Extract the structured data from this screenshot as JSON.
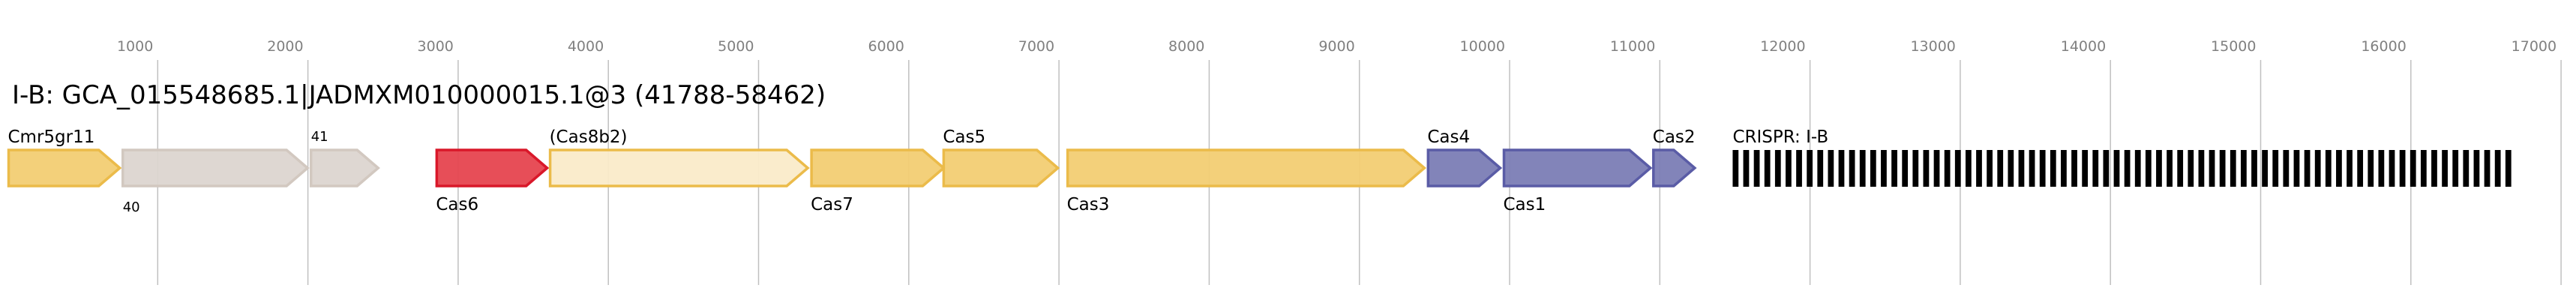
{
  "title": "I-B: GCA_015548685.1|JADMXM010000015.1@3 (41788-58462)",
  "axis": {
    "ticks": [
      1000,
      2000,
      3000,
      4000,
      5000,
      6000,
      7000,
      8000,
      9000,
      10000,
      11000,
      12000,
      13000,
      14000,
      15000,
      16000,
      17000
    ],
    "range": [
      0,
      17000
    ],
    "grid": true
  },
  "colors": {
    "adaptation_yellow": {
      "fill": "#f2cd73",
      "stroke": "#ebbb4a"
    },
    "unknown_grey": {
      "fill": "#dcd5d0",
      "stroke": "#d2c8c0"
    },
    "cas6_red": {
      "fill": "#e6444f",
      "stroke": "#d9182a"
    },
    "partial_yellow": {
      "fill": "#faebc9",
      "stroke": "#ebbb4a"
    },
    "acquisition_blue": {
      "fill": "#7b7db5",
      "stroke": "#5a5ca6"
    },
    "crispr": "#000000",
    "grid": "#c0c0c0",
    "tick_text": "#808080"
  },
  "genes": [
    {
      "label": "Cmr5gr11",
      "start": 0,
      "end": 755,
      "color": "adaptation_yellow",
      "label_pos": "above",
      "small": false
    },
    {
      "label": "40",
      "start": 760,
      "end": 2005,
      "color": "unknown_grey",
      "label_pos": "below",
      "small": true
    },
    {
      "label": "41",
      "start": 2013,
      "end": 2475,
      "color": "unknown_grey",
      "label_pos": "above",
      "small": true
    },
    {
      "label": "Cas6",
      "start": 2850,
      "end": 3600,
      "color": "cas6_red",
      "label_pos": "below",
      "small": false
    },
    {
      "label": "(Cas8b2)",
      "start": 3605,
      "end": 5335,
      "color": "partial_yellow",
      "label_pos": "above",
      "small": false
    },
    {
      "label": "Cas7",
      "start": 5345,
      "end": 6240,
      "color": "adaptation_yellow",
      "label_pos": "below",
      "small": false
    },
    {
      "label": "Cas5",
      "start": 6225,
      "end": 7000,
      "color": "adaptation_yellow",
      "label_pos": "above",
      "small": false
    },
    {
      "label": "Cas3",
      "start": 7050,
      "end": 9440,
      "color": "adaptation_yellow",
      "label_pos": "below",
      "small": false
    },
    {
      "label": "Cas4",
      "start": 9450,
      "end": 9945,
      "color": "acquisition_blue",
      "label_pos": "above",
      "small": false
    },
    {
      "label": "Cas1",
      "start": 9955,
      "end": 10945,
      "color": "acquisition_blue",
      "label_pos": "below",
      "small": false
    },
    {
      "label": "Cas2",
      "start": 10950,
      "end": 11240,
      "color": "acquisition_blue",
      "label_pos": "above",
      "small": false
    }
  ],
  "crispr": {
    "label": "CRISPR: I-B",
    "start": 11485,
    "end": 16700,
    "repeats": 74
  }
}
